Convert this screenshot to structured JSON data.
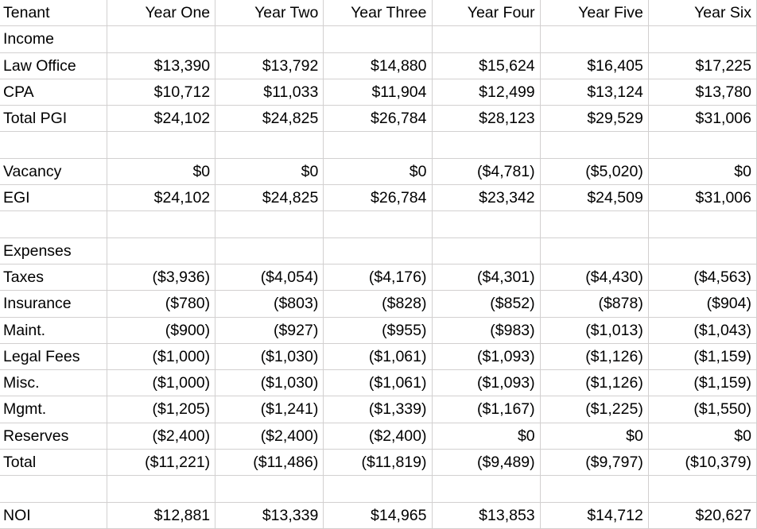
{
  "app": {
    "description": "Spreadsheet pro-forma income statement for two tenants over six years"
  },
  "colors": {
    "background": "#ffffff",
    "gridline": "#d2d0d0",
    "text": "#000000"
  },
  "table": {
    "columns": [
      "Tenant",
      "Year One",
      "Year Two",
      "Year Three",
      "Year Four",
      "Year Five",
      "Year Six"
    ],
    "rows": [
      {
        "label": "Income",
        "values": [
          "",
          "",
          "",
          "",
          "",
          ""
        ]
      },
      {
        "label": "Law Office",
        "values": [
          "$13,390",
          "$13,792",
          "$14,880",
          "$15,624",
          "$16,405",
          "$17,225"
        ]
      },
      {
        "label": "CPA",
        "values": [
          "$10,712",
          "$11,033",
          "$11,904",
          "$12,499",
          "$13,124",
          "$13,780"
        ]
      },
      {
        "label": "Total PGI",
        "values": [
          "$24,102",
          "$24,825",
          "$26,784",
          "$28,123",
          "$29,529",
          "$31,006"
        ]
      },
      {
        "label": "",
        "values": [
          "",
          "",
          "",
          "",
          "",
          ""
        ]
      },
      {
        "label": "Vacancy",
        "values": [
          "$0",
          "$0",
          "$0",
          "($4,781)",
          "($5,020)",
          "$0"
        ]
      },
      {
        "label": "EGI",
        "values": [
          "$24,102",
          "$24,825",
          "$26,784",
          "$23,342",
          "$24,509",
          "$31,006"
        ]
      },
      {
        "label": "",
        "values": [
          "",
          "",
          "",
          "",
          "",
          ""
        ]
      },
      {
        "label": "Expenses",
        "values": [
          "",
          "",
          "",
          "",
          "",
          ""
        ]
      },
      {
        "label": "Taxes",
        "values": [
          "($3,936)",
          "($4,054)",
          "($4,176)",
          "($4,301)",
          "($4,430)",
          "($4,563)"
        ]
      },
      {
        "label": "Insurance",
        "values": [
          "($780)",
          "($803)",
          "($828)",
          "($852)",
          "($878)",
          "($904)"
        ]
      },
      {
        "label": "Maint.",
        "values": [
          "($900)",
          "($927)",
          "($955)",
          "($983)",
          "($1,013)",
          "($1,043)"
        ]
      },
      {
        "label": "Legal Fees",
        "values": [
          "($1,000)",
          "($1,030)",
          "($1,061)",
          "($1,093)",
          "($1,126)",
          "($1,159)"
        ]
      },
      {
        "label": "Misc.",
        "values": [
          "($1,000)",
          "($1,030)",
          "($1,061)",
          "($1,093)",
          "($1,126)",
          "($1,159)"
        ]
      },
      {
        "label": "Mgmt.",
        "values": [
          "($1,205)",
          "($1,241)",
          "($1,339)",
          "($1,167)",
          "($1,225)",
          "($1,550)"
        ]
      },
      {
        "label": "Reserves",
        "values": [
          "($2,400)",
          "($2,400)",
          "($2,400)",
          "$0",
          "$0",
          "$0"
        ]
      },
      {
        "label": "Total",
        "values": [
          "($11,221)",
          "($11,486)",
          "($11,819)",
          "($9,489)",
          "($9,797)",
          "($10,379)"
        ]
      },
      {
        "label": "",
        "values": [
          "",
          "",
          "",
          "",
          "",
          ""
        ]
      },
      {
        "label": "NOI",
        "values": [
          "$12,881",
          "$13,339",
          "$14,965",
          "$13,853",
          "$14,712",
          "$20,627"
        ]
      }
    ]
  }
}
